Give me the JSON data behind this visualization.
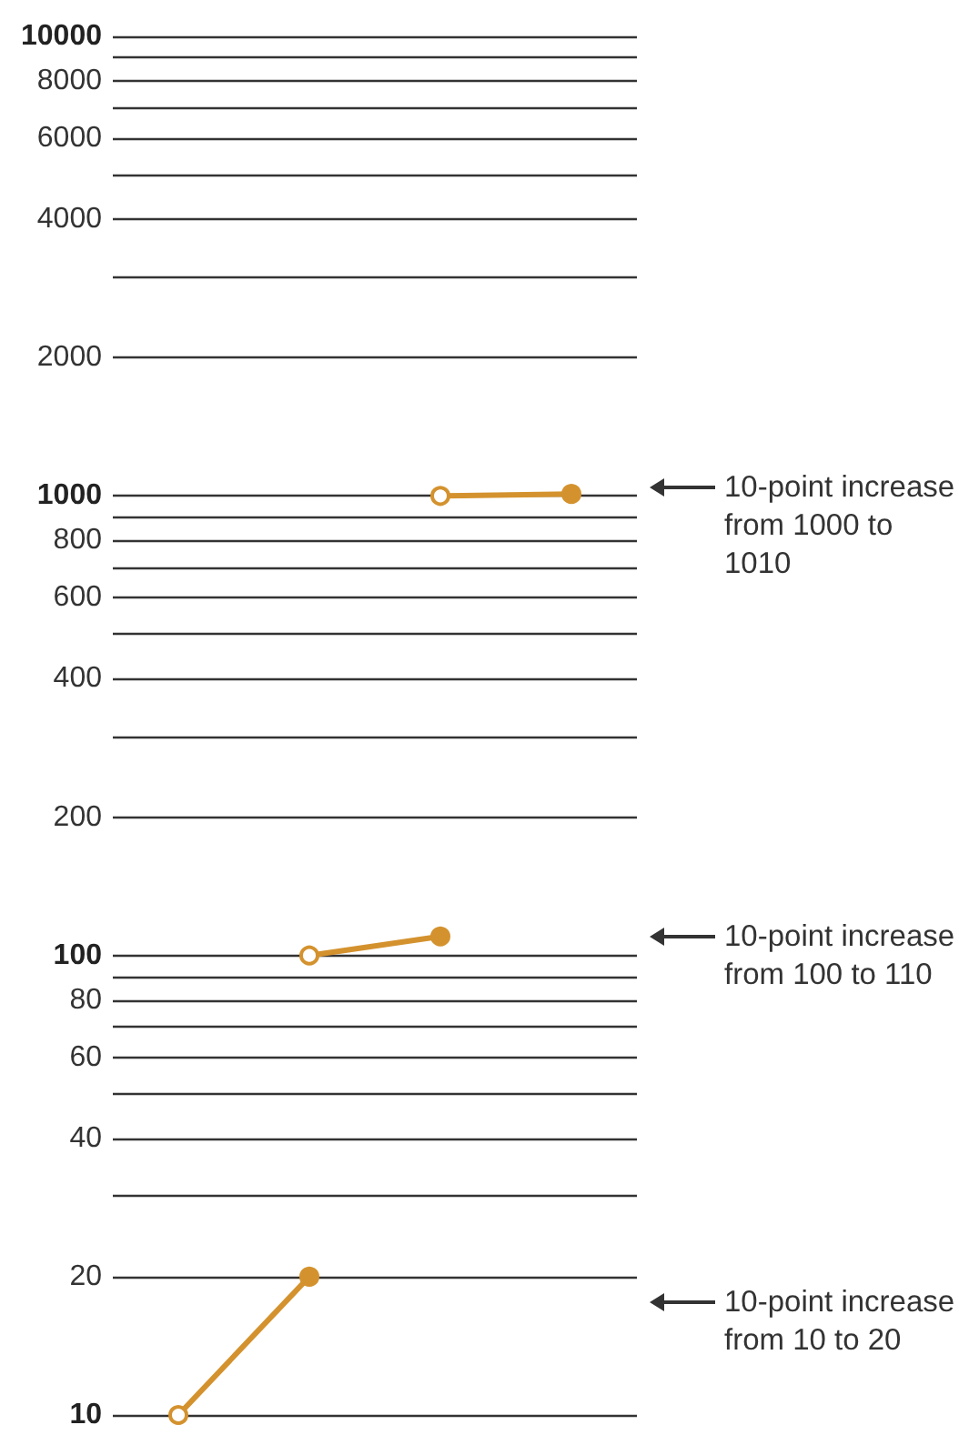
{
  "chart_data": {
    "type": "line",
    "categories": [
      null,
      null,
      null,
      null
    ],
    "log": "y",
    "ylim": [
      10,
      10000
    ],
    "yticks": [
      10,
      20,
      {
        "value": 30,
        "label": null
      },
      40,
      {
        "value": 50,
        "label": null
      },
      60,
      {
        "value": 70,
        "label": null
      },
      80,
      {
        "value": 90,
        "label": null
      },
      100,
      200,
      {
        "value": 300,
        "label": null
      },
      400,
      {
        "value": 500,
        "label": null
      },
      600,
      {
        "value": 700,
        "label": null
      },
      800,
      {
        "value": 900,
        "label": null
      },
      1000,
      2000,
      {
        "value": 3000,
        "label": null
      },
      4000,
      {
        "value": 5000,
        "label": null
      },
      6000,
      {
        "value": 7000,
        "label": null
      },
      8000,
      {
        "value": 9000,
        "label": null
      },
      10000
    ],
    "series": [
      {
        "color": "#d4922e",
        "values": [
          10,
          20,
          null,
          null
        ]
      },
      {
        "color": "#d4922e",
        "values": [
          null,
          100,
          110,
          null
        ]
      },
      {
        "color": "#d4922e",
        "values": [
          null,
          null,
          1000,
          1010
        ]
      }
    ],
    "marker": "circle",
    "grid": "y",
    "annotations": [
      "10-point increase from 1000 to 1010",
      "10-point increase from 100 to 110",
      "10-point increase from 10 to 20"
    ]
  }
}
